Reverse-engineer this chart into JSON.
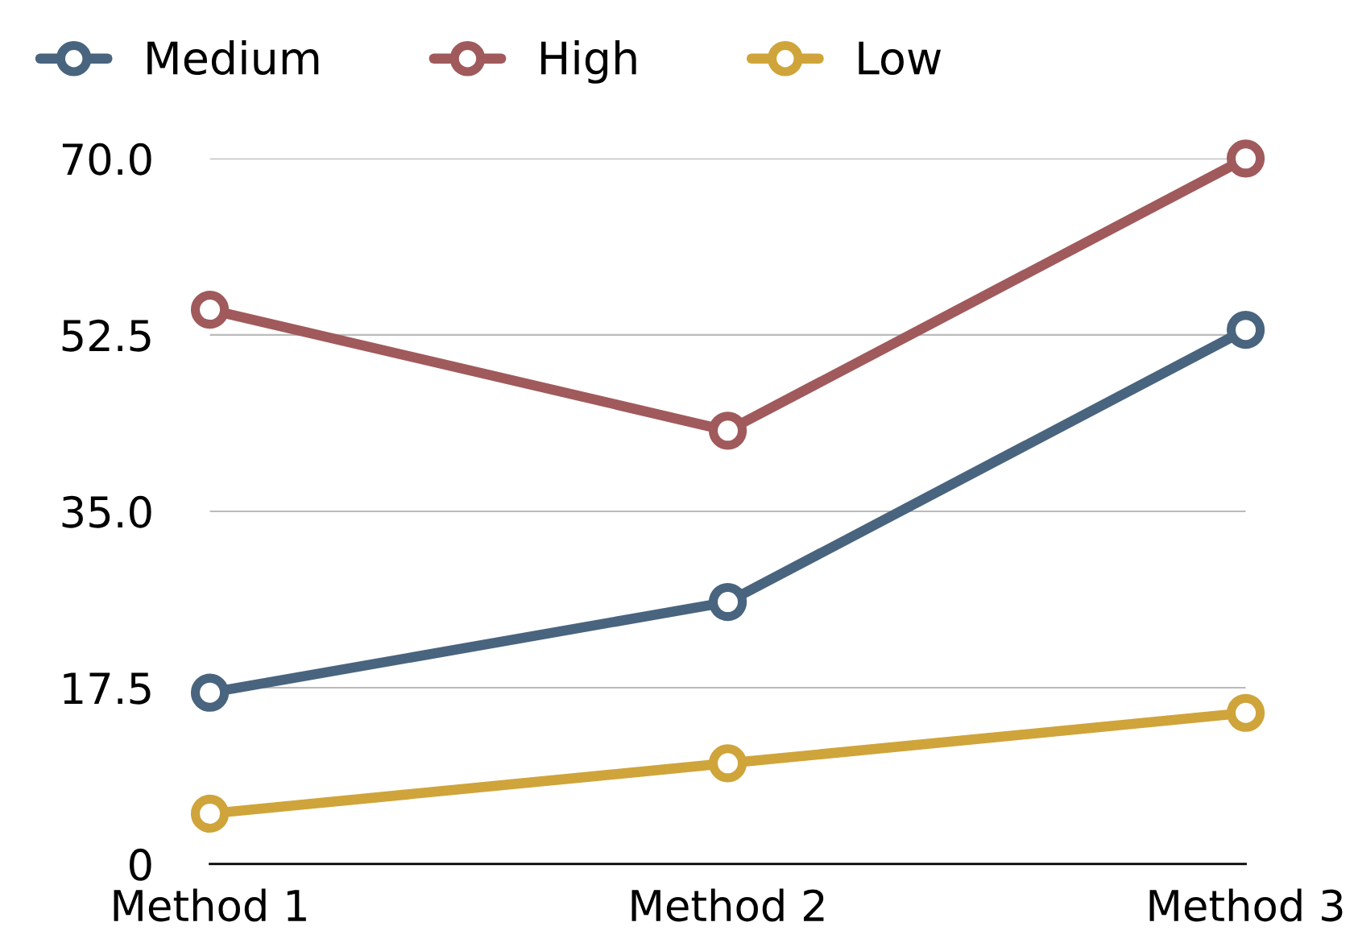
{
  "chart_data": {
    "type": "line",
    "categories": [
      "Method 1",
      "Method 2",
      "Method 3"
    ],
    "series": [
      {
        "name": "Medium",
        "color": "#49647e",
        "values": [
          17,
          26,
          53
        ]
      },
      {
        "name": "High",
        "color": "#a05a5c",
        "values": [
          55,
          43,
          70
        ]
      },
      {
        "name": "Low",
        "color": "#cfa43a",
        "values": [
          5,
          10,
          15
        ]
      }
    ],
    "ylim": [
      0,
      70
    ],
    "yticks": [
      0,
      17.5,
      {
        "value": 35,
        "label": "35.0"
      },
      {
        "value": 52.5,
        "label": "52.5"
      },
      {
        "value": 70,
        "label": "70.0"
      }
    ],
    "grid": "y",
    "legend": "top left",
    "marker": "circle",
    "line_style": "solid"
  }
}
